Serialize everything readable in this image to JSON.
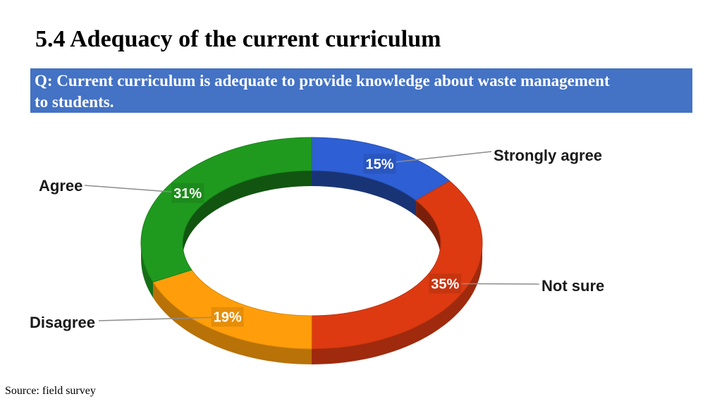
{
  "slide": {
    "title": "5.4 Adequacy of the current curriculum",
    "question": "Q: Current curriculum is adequate to provide knowledge about waste management to students.",
    "source": "Source: field survey"
  },
  "chart_data": {
    "type": "pie",
    "style": "3d-doughnut",
    "title": "",
    "categories": [
      "Strongly agree",
      "Not sure",
      "Disagree",
      "Agree"
    ],
    "values": [
      15,
      35,
      19,
      31
    ],
    "labels": [
      "15%",
      "35%",
      "19%",
      "31%"
    ],
    "colors": [
      "#2e5fd4",
      "#dd3a12",
      "#ff9e0a",
      "#1f9a1f"
    ],
    "legend": "none (leader-line labels)"
  }
}
